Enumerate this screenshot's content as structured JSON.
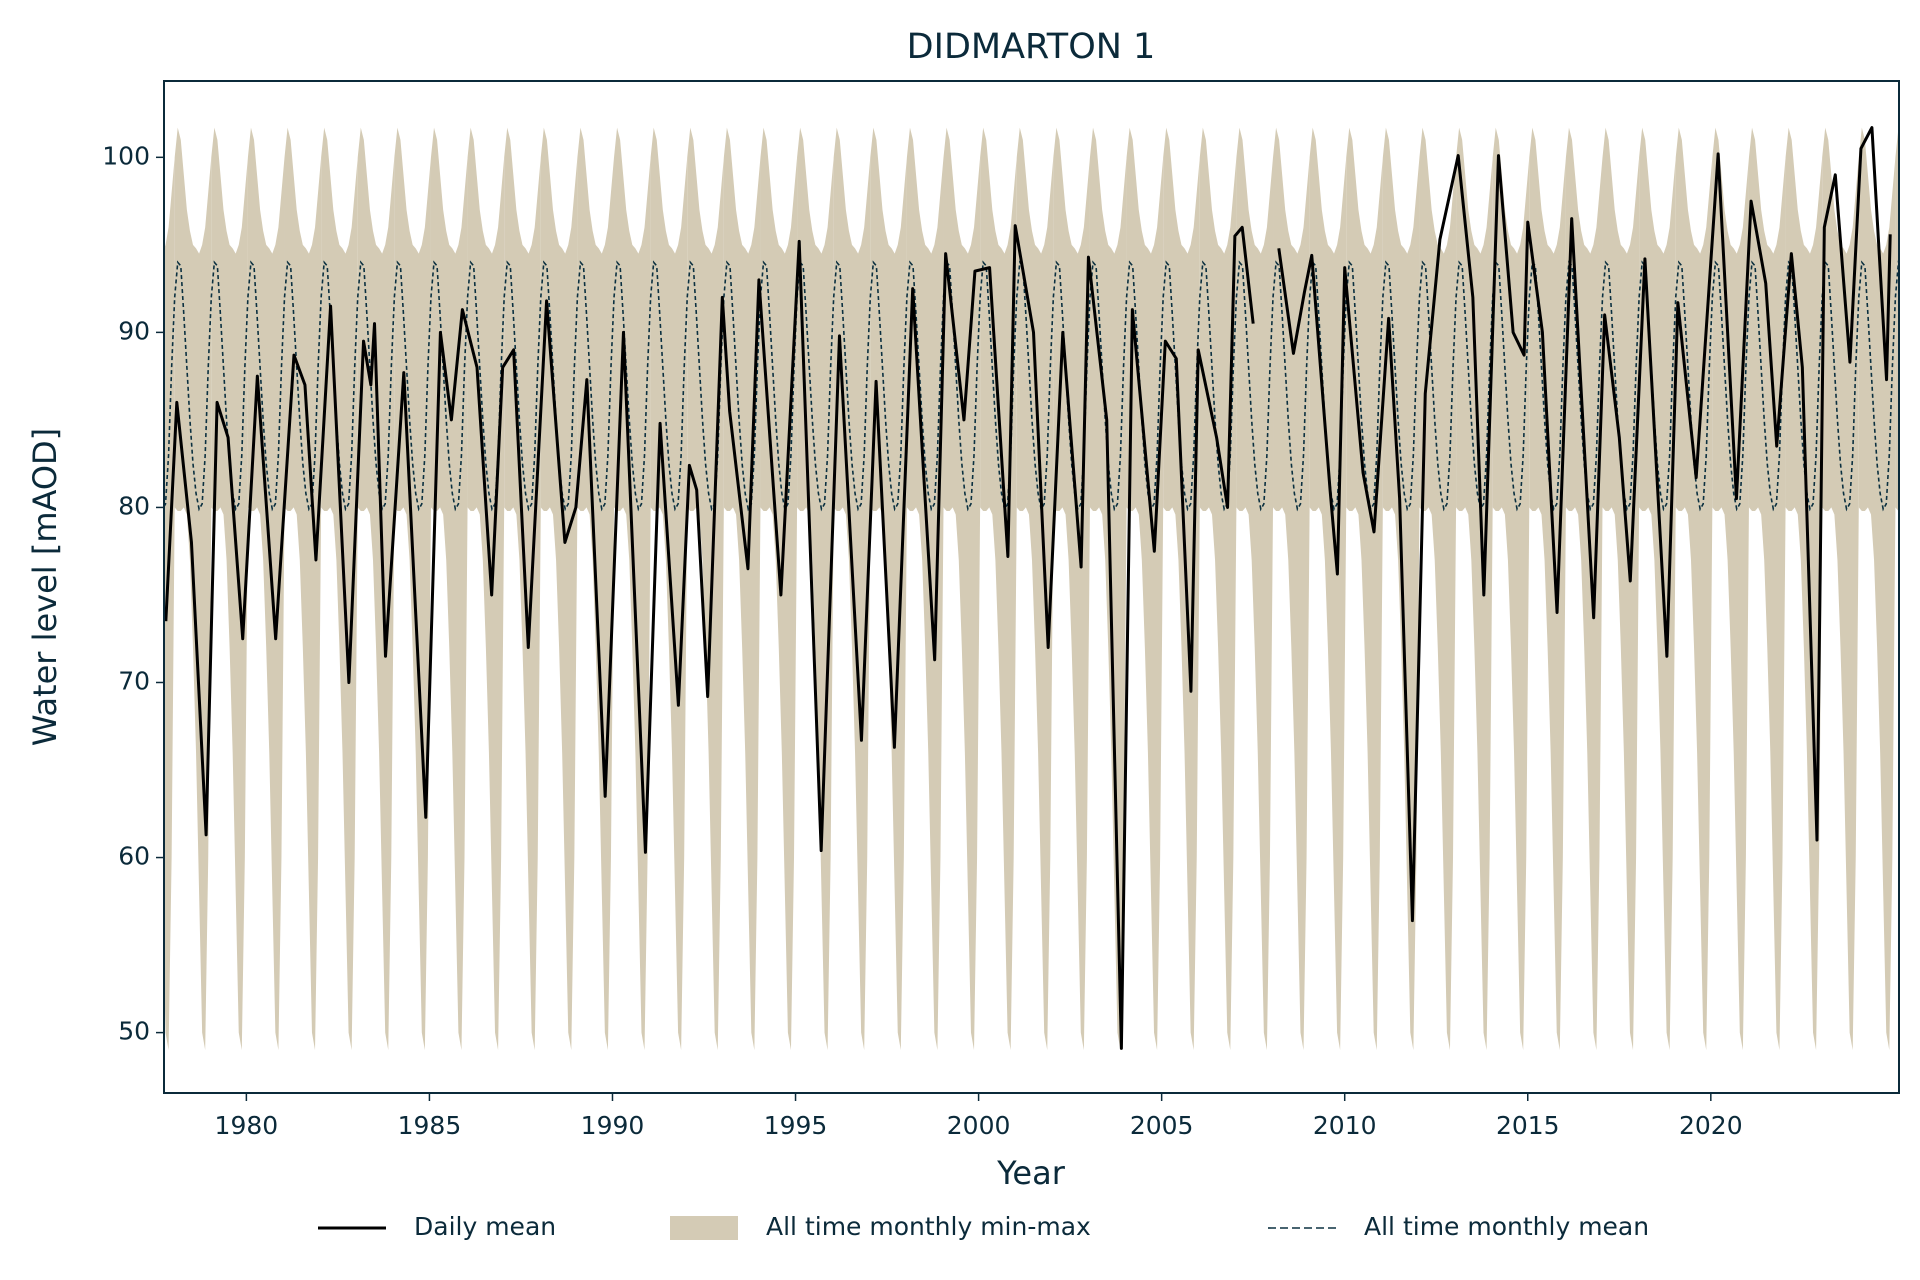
{
  "chart_data": {
    "type": "line",
    "title": "DIDMARTON 1",
    "xlabel": "Year",
    "ylabel": "Water level [mAOD]",
    "xlim": [
      1977.75,
      2025.14
    ],
    "ylim": [
      46.55,
      104.36
    ],
    "xticks": [
      1980,
      1985,
      1990,
      1995,
      2000,
      2005,
      2010,
      2015,
      2020
    ],
    "yticks": [
      50,
      60,
      70,
      80,
      90,
      100
    ],
    "legend": "lower center",
    "series": [
      {
        "name": "Daily mean",
        "color": "#000000",
        "x": [
          1977.8,
          1978.1,
          1978.5,
          1978.9,
          1979.2,
          1979.5,
          1979.9,
          1980.3,
          1980.8,
          1981.3,
          1981.6,
          1981.9,
          1982.3,
          1982.8,
          1983.2,
          1983.4,
          1983.5,
          1983.8,
          1984.3,
          1984.9,
          1985.3,
          1985.6,
          1985.9,
          1986.3,
          1986.7,
          1987.0,
          1987.3,
          1987.7,
          1988.2,
          1988.7,
          1989.0,
          1989.3,
          1989.8,
          1990.3,
          1990.9,
          1991.3,
          1991.8,
          1992.1,
          1992.3,
          1992.6,
          1993.0,
          1993.2,
          1993.7,
          1994.0,
          1994.6,
          1995.1,
          1995.7,
          1996.2,
          1996.8,
          1997.2,
          1997.7,
          1998.2,
          1998.8,
          1999.1,
          1999.6,
          1999.9,
          2000.3,
          2000.8,
          2001.0,
          2001.5,
          2001.9,
          2002.3,
          2002.8,
          2003.0,
          2003.5,
          2003.9,
          2004.2,
          2004.8,
          2005.1,
          2005.4,
          2005.8,
          2006.0,
          2006.5,
          2006.8,
          2007.0,
          2007.2,
          2007.5,
          2007.7,
          2008.2,
          2008.6,
          2008.9,
          2009.1,
          2009.6,
          2009.8,
          2010.0,
          2010.5,
          2010.8,
          2011.2,
          2011.5,
          2011.85,
          2012.2,
          2012.6,
          2013.1,
          2013.5,
          2013.8,
          2014.2,
          2014.6,
          2014.9,
          2015.0,
          2015.4,
          2015.8,
          2016.2,
          2016.8,
          2017.1,
          2017.5,
          2017.8,
          2018.2,
          2018.8,
          2019.1,
          2019.6,
          2020.2,
          2020.7,
          2021.1,
          2021.5,
          2021.8,
          2022.2,
          2022.5,
          2022.9,
          2023.1,
          2023.4,
          2023.8,
          2024.1,
          2024.4,
          2024.8,
          2024.9
        ],
        "values": [
          73.5,
          86,
          78,
          61.3,
          86,
          84,
          72.5,
          87.5,
          72.5,
          88.7,
          87,
          77,
          91.5,
          70,
          89.5,
          87,
          90.5,
          71.5,
          87.7,
          62.3,
          90,
          85,
          91.3,
          88,
          75,
          88,
          89,
          72,
          91.8,
          78,
          80,
          87.3,
          63.5,
          90,
          60.3,
          84.8,
          68.7,
          82.4,
          81,
          69.2,
          92,
          85.5,
          76.5,
          93,
          75,
          95.2,
          60.4,
          89.8,
          66.7,
          87.2,
          66.3,
          92.5,
          71.3,
          94.5,
          85,
          93.5,
          93.7,
          77.2,
          96.1,
          90,
          72,
          90,
          76.6,
          94.3,
          85,
          49.1,
          91.3,
          77.5,
          89.5,
          88.5,
          69.5,
          89,
          84,
          80,
          95.5,
          96,
          90.5,
          null,
          94.8,
          88.8,
          92.3,
          94.4,
          81,
          76.2,
          93.7,
          82,
          78.6,
          90.8,
          80.5,
          56.4,
          86.5,
          95.3,
          100.1,
          92,
          75,
          100.1,
          90,
          88.7,
          96.3,
          90,
          74,
          96.5,
          73.7,
          91,
          84,
          75.8,
          94.2,
          71.5,
          91.7,
          81.7,
          100.2,
          80.5,
          97.5,
          92.8,
          83.5,
          94.5,
          88,
          61,
          96,
          99,
          88.3,
          100.5,
          101.7,
          87.3,
          95.6
        ]
      },
      {
        "name": "All time monthly min-max",
        "color": "#d4cbb5",
        "low": [
          80,
          79.8,
          79.8,
          80,
          79.6,
          77,
          72,
          66,
          58,
          50,
          49,
          60
        ],
        "high": [
          100,
          101.7,
          101,
          99,
          97,
          95.8,
          95,
          94.8,
          94.5,
          95,
          96,
          98
        ]
      },
      {
        "name": "All time monthly mean",
        "color": "#0b3040",
        "dash": true,
        "values": [
          92,
          94,
          93.8,
          91,
          88,
          85,
          82.5,
          80.8,
          79.9,
          80.2,
          83,
          88
        ]
      }
    ]
  }
}
